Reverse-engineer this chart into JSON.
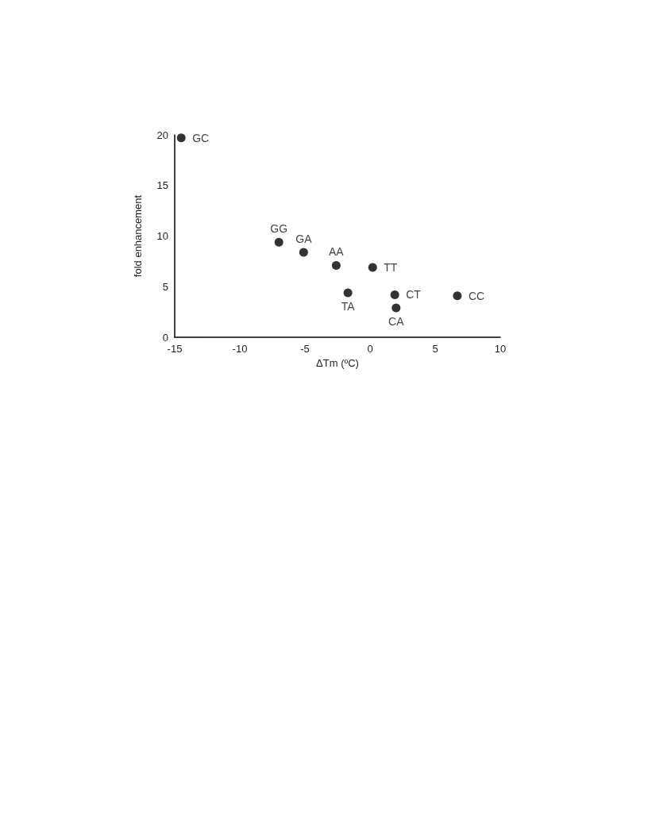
{
  "chart_data": {
    "type": "scatter",
    "xlabel": "ΔTm (ºC)",
    "ylabel": "fold enhancement",
    "x": [
      -14.5,
      -7.0,
      -5.1,
      -2.6,
      0.2,
      -1.7,
      1.9,
      2.0,
      6.7
    ],
    "values": [
      19.7,
      9.4,
      8.4,
      7.1,
      6.9,
      4.4,
      4.2,
      2.9,
      4.1
    ],
    "color": "#000000",
    "marker": "circle",
    "xlim": [
      -15,
      10
    ],
    "xticks": [
      -15,
      -10,
      -5,
      0,
      5,
      10
    ],
    "ylim": [
      0,
      20
    ],
    "yticks": [
      0,
      5,
      10,
      15,
      20
    ],
    "grid": false,
    "annotations": [
      {
        "text": "GC",
        "x": -14.5,
        "y": 19.7
      },
      {
        "text": "GG",
        "x": -7.0,
        "y": 9.4
      },
      {
        "text": "GA",
        "x": -5.1,
        "y": 8.4
      },
      {
        "text": "AA",
        "x": -2.6,
        "y": 7.1
      },
      {
        "text": "TT",
        "x": 0.2,
        "y": 6.9
      },
      {
        "text": "TA",
        "x": -1.7,
        "y": 4.4
      },
      {
        "text": "CT",
        "x": 1.9,
        "y": 4.2
      },
      {
        "text": "CA",
        "x": 2.0,
        "y": 2.9
      },
      {
        "text": "CC",
        "x": 6.7,
        "y": 4.1
      }
    ]
  }
}
